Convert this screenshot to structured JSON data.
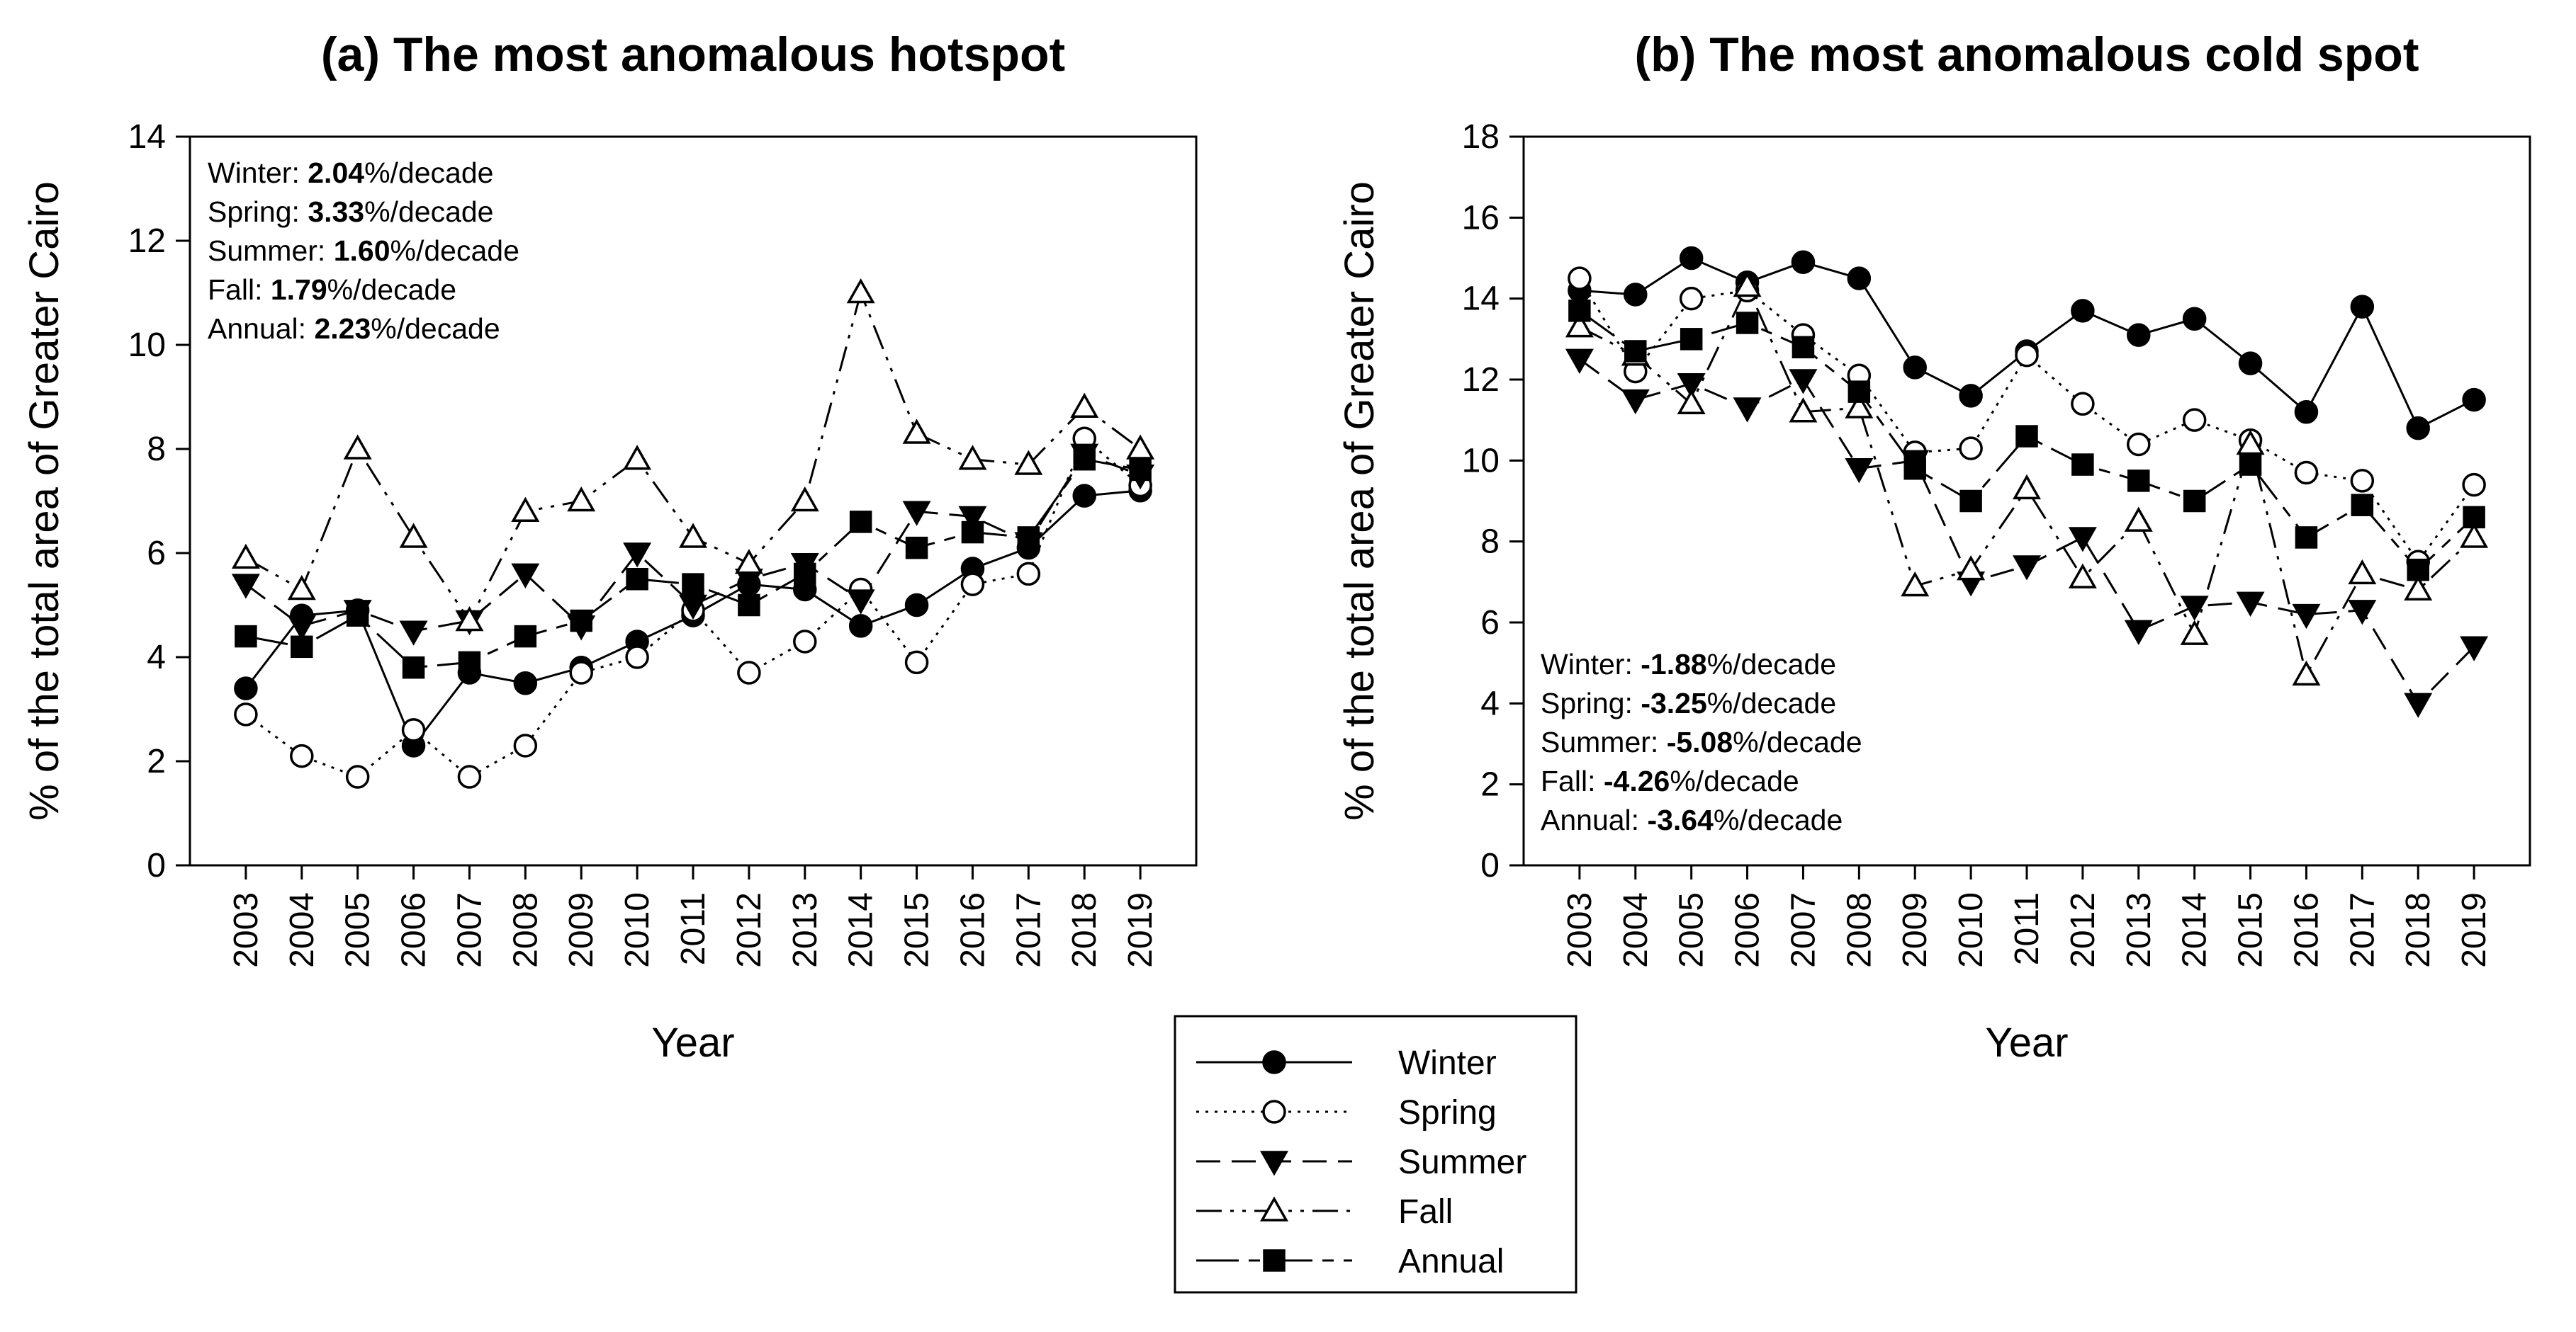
{
  "chart_data": [
    {
      "type": "line",
      "title": "(a) The most anomalous hotspot",
      "xlabel": "Year",
      "ylabel": "% of the total area of Greater Cairo",
      "ylim": [
        0,
        14
      ],
      "yticks": [
        0,
        2,
        4,
        6,
        8,
        10,
        12,
        14
      ],
      "x": [
        "2003",
        "2004",
        "2005",
        "2006",
        "2007",
        "2008",
        "2009",
        "2010",
        "2011",
        "2012",
        "2013",
        "2014",
        "2015",
        "2016",
        "2017",
        "2018",
        "2019"
      ],
      "series": [
        {
          "name": "Winter",
          "values": [
            3.4,
            4.8,
            4.9,
            2.3,
            3.7,
            3.5,
            3.8,
            4.3,
            4.8,
            5.4,
            5.3,
            4.6,
            5.0,
            5.7,
            6.1,
            7.1,
            7.2
          ]
        },
        {
          "name": "Spring",
          "values": [
            2.9,
            2.1,
            1.7,
            2.6,
            1.7,
            2.3,
            3.7,
            4.0,
            4.9,
            3.7,
            4.3,
            5.3,
            3.9,
            5.4,
            5.6,
            8.2,
            7.3
          ]
        },
        {
          "name": "Summer",
          "values": [
            5.4,
            4.6,
            4.9,
            4.5,
            4.7,
            5.6,
            4.6,
            6.0,
            5.0,
            5.5,
            5.8,
            5.1,
            6.8,
            6.7,
            6.2,
            7.9,
            7.5
          ]
        },
        {
          "name": "Fall",
          "values": [
            5.9,
            5.3,
            8.0,
            6.3,
            4.7,
            6.8,
            7.0,
            7.8,
            6.3,
            5.8,
            7.0,
            11.0,
            8.3,
            7.8,
            7.7,
            8.8,
            8.0
          ]
        },
        {
          "name": "Annual",
          "values": [
            4.4,
            4.2,
            4.8,
            3.8,
            3.9,
            4.4,
            4.7,
            5.5,
            5.4,
            5.0,
            5.6,
            6.6,
            6.1,
            6.4,
            6.3,
            7.8,
            7.6
          ]
        }
      ],
      "annotations": [
        {
          "season": "Winter: ",
          "value": "2.04",
          "unit": "%/decade"
        },
        {
          "season": "Spring: ",
          "value": "3.33",
          "unit": "%/decade"
        },
        {
          "season": "Summer: ",
          "value": "1.60",
          "unit": "%/decade"
        },
        {
          "season": "Fall: ",
          "value": "1.79",
          "unit": "%/decade"
        },
        {
          "season": "Annual: ",
          "value": "2.23",
          "unit": "%/decade"
        }
      ],
      "annotation_position": "top-left"
    },
    {
      "type": "line",
      "title": "(b) The most anomalous cold spot",
      "xlabel": "Year",
      "ylabel": "% of the total area of Greater Cairo",
      "ylim": [
        0,
        18
      ],
      "yticks": [
        0,
        2,
        4,
        6,
        8,
        10,
        12,
        14,
        16,
        18
      ],
      "x": [
        "2003",
        "2004",
        "2005",
        "2006",
        "2007",
        "2008",
        "2009",
        "2010",
        "2011",
        "2012",
        "2013",
        "2014",
        "2015",
        "2016",
        "2017",
        "2018",
        "2019"
      ],
      "series": [
        {
          "name": "Winter",
          "values": [
            14.2,
            14.1,
            15.0,
            14.4,
            14.9,
            14.5,
            12.3,
            11.6,
            12.7,
            13.7,
            13.1,
            13.5,
            12.4,
            11.2,
            13.8,
            10.8,
            11.5
          ]
        },
        {
          "name": "Spring",
          "values": [
            14.5,
            12.2,
            14.0,
            14.2,
            13.1,
            12.1,
            10.2,
            10.3,
            12.6,
            11.4,
            10.4,
            11.0,
            10.5,
            9.7,
            9.5,
            7.5,
            9.4
          ]
        },
        {
          "name": "Summer",
          "values": [
            12.5,
            11.5,
            11.9,
            11.3,
            12.0,
            9.8,
            10.0,
            7.0,
            7.4,
            8.1,
            5.8,
            6.4,
            6.5,
            6.2,
            6.3,
            4.0,
            5.4
          ]
        },
        {
          "name": "Fall",
          "values": [
            13.3,
            12.6,
            11.4,
            14.3,
            11.2,
            11.3,
            6.9,
            7.3,
            9.3,
            7.1,
            8.5,
            5.7,
            10.4,
            4.7,
            7.2,
            6.8,
            8.1
          ]
        },
        {
          "name": "Annual",
          "values": [
            13.7,
            12.7,
            13.0,
            13.4,
            12.8,
            11.7,
            9.8,
            9.0,
            10.6,
            9.9,
            9.5,
            9.0,
            9.9,
            8.1,
            8.9,
            7.3,
            8.6
          ]
        }
      ],
      "annotations": [
        {
          "season": "Winter: ",
          "value": "-1.88",
          "unit": "%/decade"
        },
        {
          "season": "Spring: ",
          "value": "-3.25",
          "unit": "%/decade"
        },
        {
          "season": "Summer: ",
          "value": "-5.08",
          "unit": "%/decade"
        },
        {
          "season": "Fall: ",
          "value": "-4.26",
          "unit": "%/decade"
        },
        {
          "season": "Annual: ",
          "value": "-3.64",
          "unit": "%/decade"
        }
      ],
      "annotation_position": "bottom-left"
    }
  ],
  "legend": {
    "placement": "bottom-center",
    "entries": [
      "Winter",
      "Spring",
      "Summer",
      "Fall",
      "Annual"
    ]
  }
}
